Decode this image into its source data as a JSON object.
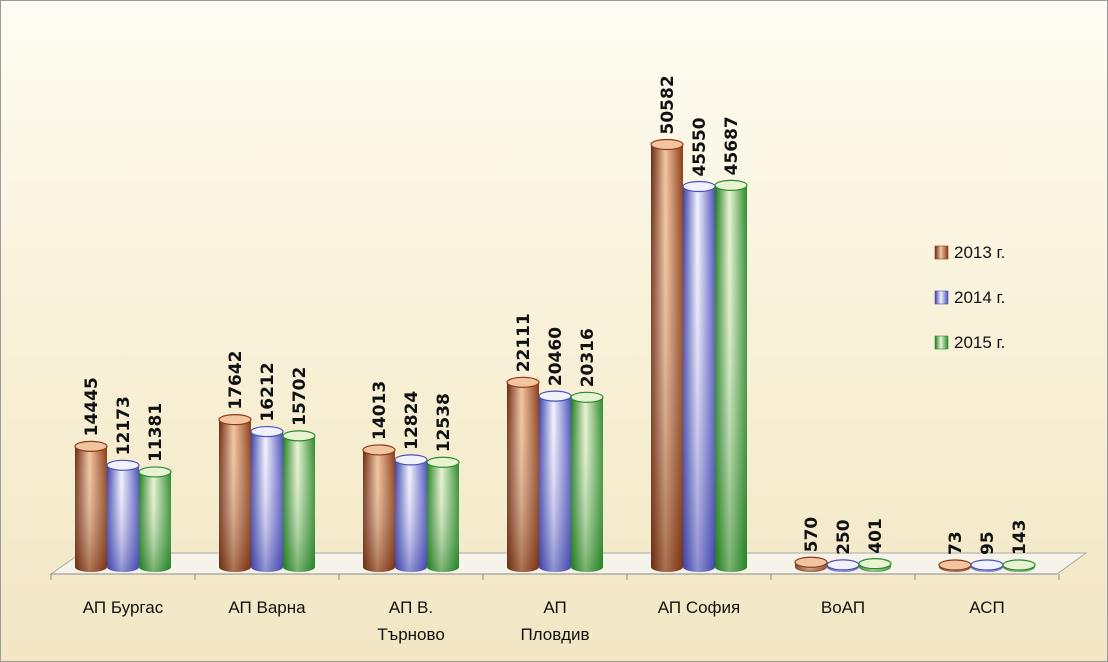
{
  "chart_data": {
    "type": "bar",
    "categories": [
      [
        "АП Бургас"
      ],
      [
        "АП Варна"
      ],
      [
        "АП В.",
        "Търново"
      ],
      [
        "АП",
        "Пловдив"
      ],
      [
        "АП София"
      ],
      [
        "ВоАП"
      ],
      [
        "АСП"
      ]
    ],
    "series": [
      {
        "name": "2013 г.",
        "values": [
          14445,
          17642,
          14013,
          22111,
          50582,
          570,
          73
        ]
      },
      {
        "name": "2014 г.",
        "values": [
          12173,
          16212,
          12824,
          20460,
          45550,
          250,
          95
        ]
      },
      {
        "name": "2015 г.",
        "values": [
          11381,
          15702,
          12538,
          20316,
          45687,
          401,
          143
        ]
      }
    ],
    "ylim": [
      0,
      51000
    ],
    "legend_position": "right",
    "colors": {
      "2013 г.": [
        "#6b2a0f",
        "#f2c5a0",
        "#8a3a14"
      ],
      "2014 г.": [
        "#3a3fa8",
        "#f2f2ff",
        "#4b50b8"
      ],
      "2015 г.": [
        "#1d7a1d",
        "#e9f3d2",
        "#2a8a2a"
      ]
    }
  }
}
